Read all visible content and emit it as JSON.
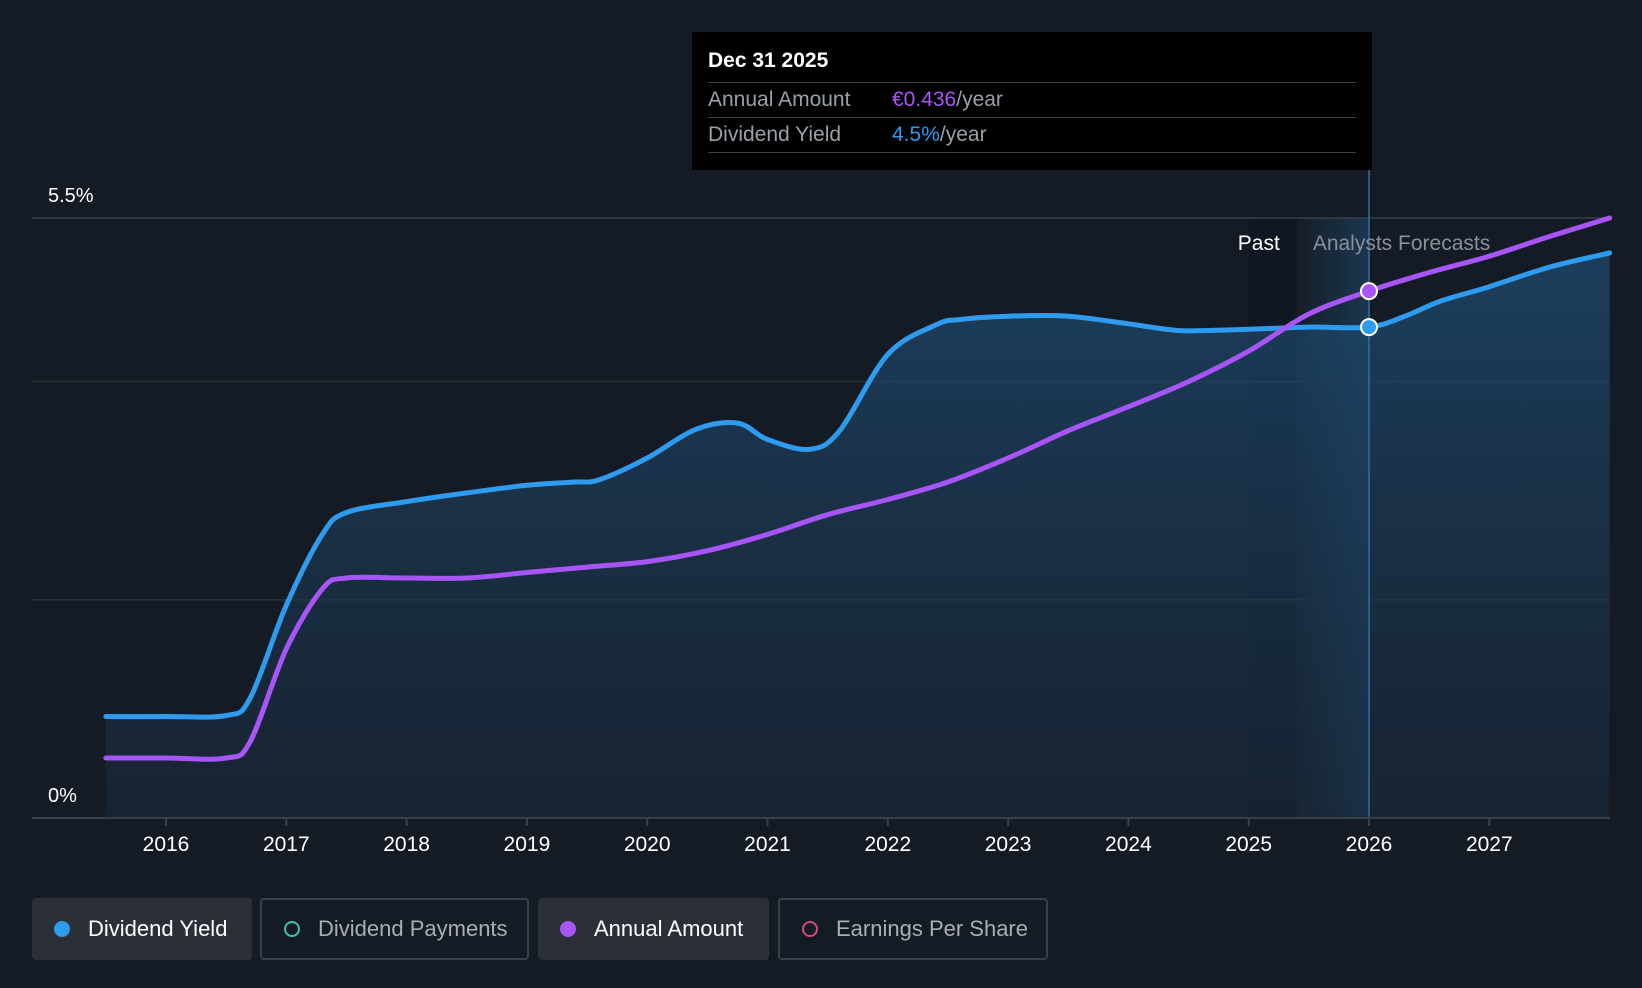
{
  "chart_data": {
    "type": "area",
    "ylim": [
      0,
      5.5
    ],
    "y_ticks": [
      "0%",
      "5.5%"
    ],
    "x_ticks": [
      "2016",
      "2017",
      "2018",
      "2019",
      "2020",
      "2021",
      "2022",
      "2023",
      "2024",
      "2025",
      "2026",
      "2027"
    ],
    "grid": true,
    "region_labels": {
      "past": "Past",
      "forecast": "Analysts Forecasts"
    },
    "series": [
      {
        "name": "Dividend Yield",
        "color": "#2f9bef",
        "x": [
          2015.5,
          2016.0,
          2016.5,
          2016.7,
          2017.0,
          2017.3,
          2017.5,
          2018.0,
          2018.5,
          2019.0,
          2019.4,
          2019.6,
          2020.0,
          2020.4,
          2020.75,
          2021.0,
          2021.35,
          2021.6,
          2022.0,
          2022.4,
          2022.6,
          2023.0,
          2023.5,
          2024.0,
          2024.4,
          2024.7,
          2025.0,
          2025.5,
          2026.0,
          2026.3,
          2026.6,
          2027.0,
          2027.5,
          2028.0
        ],
        "y": [
          0.93,
          0.93,
          0.94,
          1.1,
          1.95,
          2.6,
          2.8,
          2.9,
          2.98,
          3.05,
          3.08,
          3.1,
          3.3,
          3.56,
          3.62,
          3.47,
          3.38,
          3.55,
          4.25,
          4.52,
          4.57,
          4.6,
          4.6,
          4.53,
          4.47,
          4.47,
          4.48,
          4.5,
          4.5,
          4.6,
          4.74,
          4.87,
          5.05,
          5.18
        ]
      },
      {
        "name": "Annual Amount",
        "color": "#a855f7",
        "x": [
          2015.5,
          2016.0,
          2016.5,
          2016.7,
          2017.0,
          2017.3,
          2017.5,
          2018.0,
          2018.5,
          2019.0,
          2019.5,
          2020.0,
          2020.5,
          2021.0,
          2021.5,
          2022.0,
          2022.5,
          2023.0,
          2023.5,
          2024.0,
          2024.5,
          2025.0,
          2025.5,
          2026.0,
          2026.5,
          2027.0,
          2027.5,
          2028.0
        ],
        "y": [
          0.55,
          0.55,
          0.55,
          0.7,
          1.55,
          2.1,
          2.2,
          2.2,
          2.2,
          2.25,
          2.3,
          2.35,
          2.45,
          2.6,
          2.78,
          2.92,
          3.08,
          3.3,
          3.55,
          3.77,
          4.0,
          4.28,
          4.62,
          4.83,
          5.0,
          5.15,
          5.33,
          5.5
        ]
      }
    ],
    "highlight": {
      "x": 2026.0,
      "date": "Dec 31 2025",
      "annual_amount": "€0.436",
      "dividend_yield": "4.5%"
    }
  },
  "tooltip": {
    "date": "Dec 31 2025",
    "amount_label": "Annual Amount",
    "amount_value": "€0.436",
    "amount_unit": "/year",
    "yield_label": "Dividend Yield",
    "yield_value": "4.5%",
    "yield_unit": "/year"
  },
  "legend": [
    {
      "label": "Dividend Yield",
      "color": "#2f9bef",
      "active": true
    },
    {
      "label": "Dividend Payments",
      "color": "#3fc1b0",
      "active": false
    },
    {
      "label": "Annual Amount",
      "color": "#a855f7",
      "active": true
    },
    {
      "label": "Earnings Per Share",
      "color": "#d4477e",
      "active": false
    }
  ]
}
